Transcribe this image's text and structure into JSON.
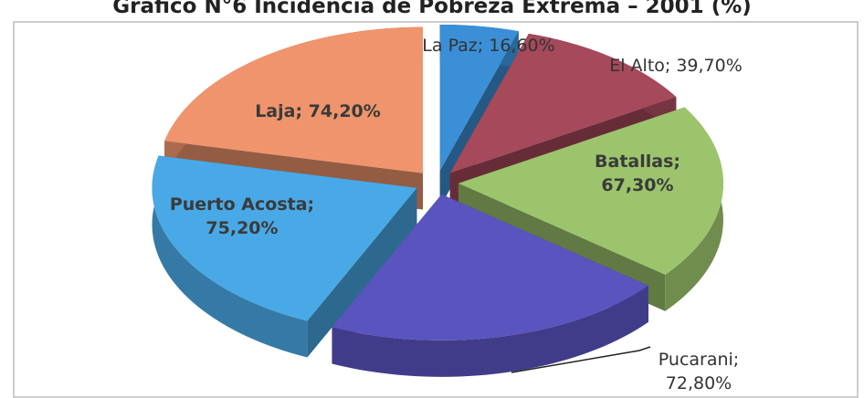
{
  "chart_data": {
    "type": "pie3d",
    "title": "Gráfico N°6 Incidencia de Pobreza Extrema – 2001 (%)",
    "values": [
      16.6,
      39.7,
      67.3,
      72.8,
      75.2,
      74.2
    ],
    "value_labels": [
      "La Paz; 16,60%",
      "El Alto; 39,70%",
      "Batallas; 67,30%",
      "Pucarani; 72,80%",
      "Puerto Acosta; 75,20%",
      "Laja; 74,20%"
    ],
    "colors": [
      "#3b8fd6",
      "#a5495b",
      "#9cc46c",
      "#5a54bf",
      "#49a9e6",
      "#ef946c"
    ]
  }
}
